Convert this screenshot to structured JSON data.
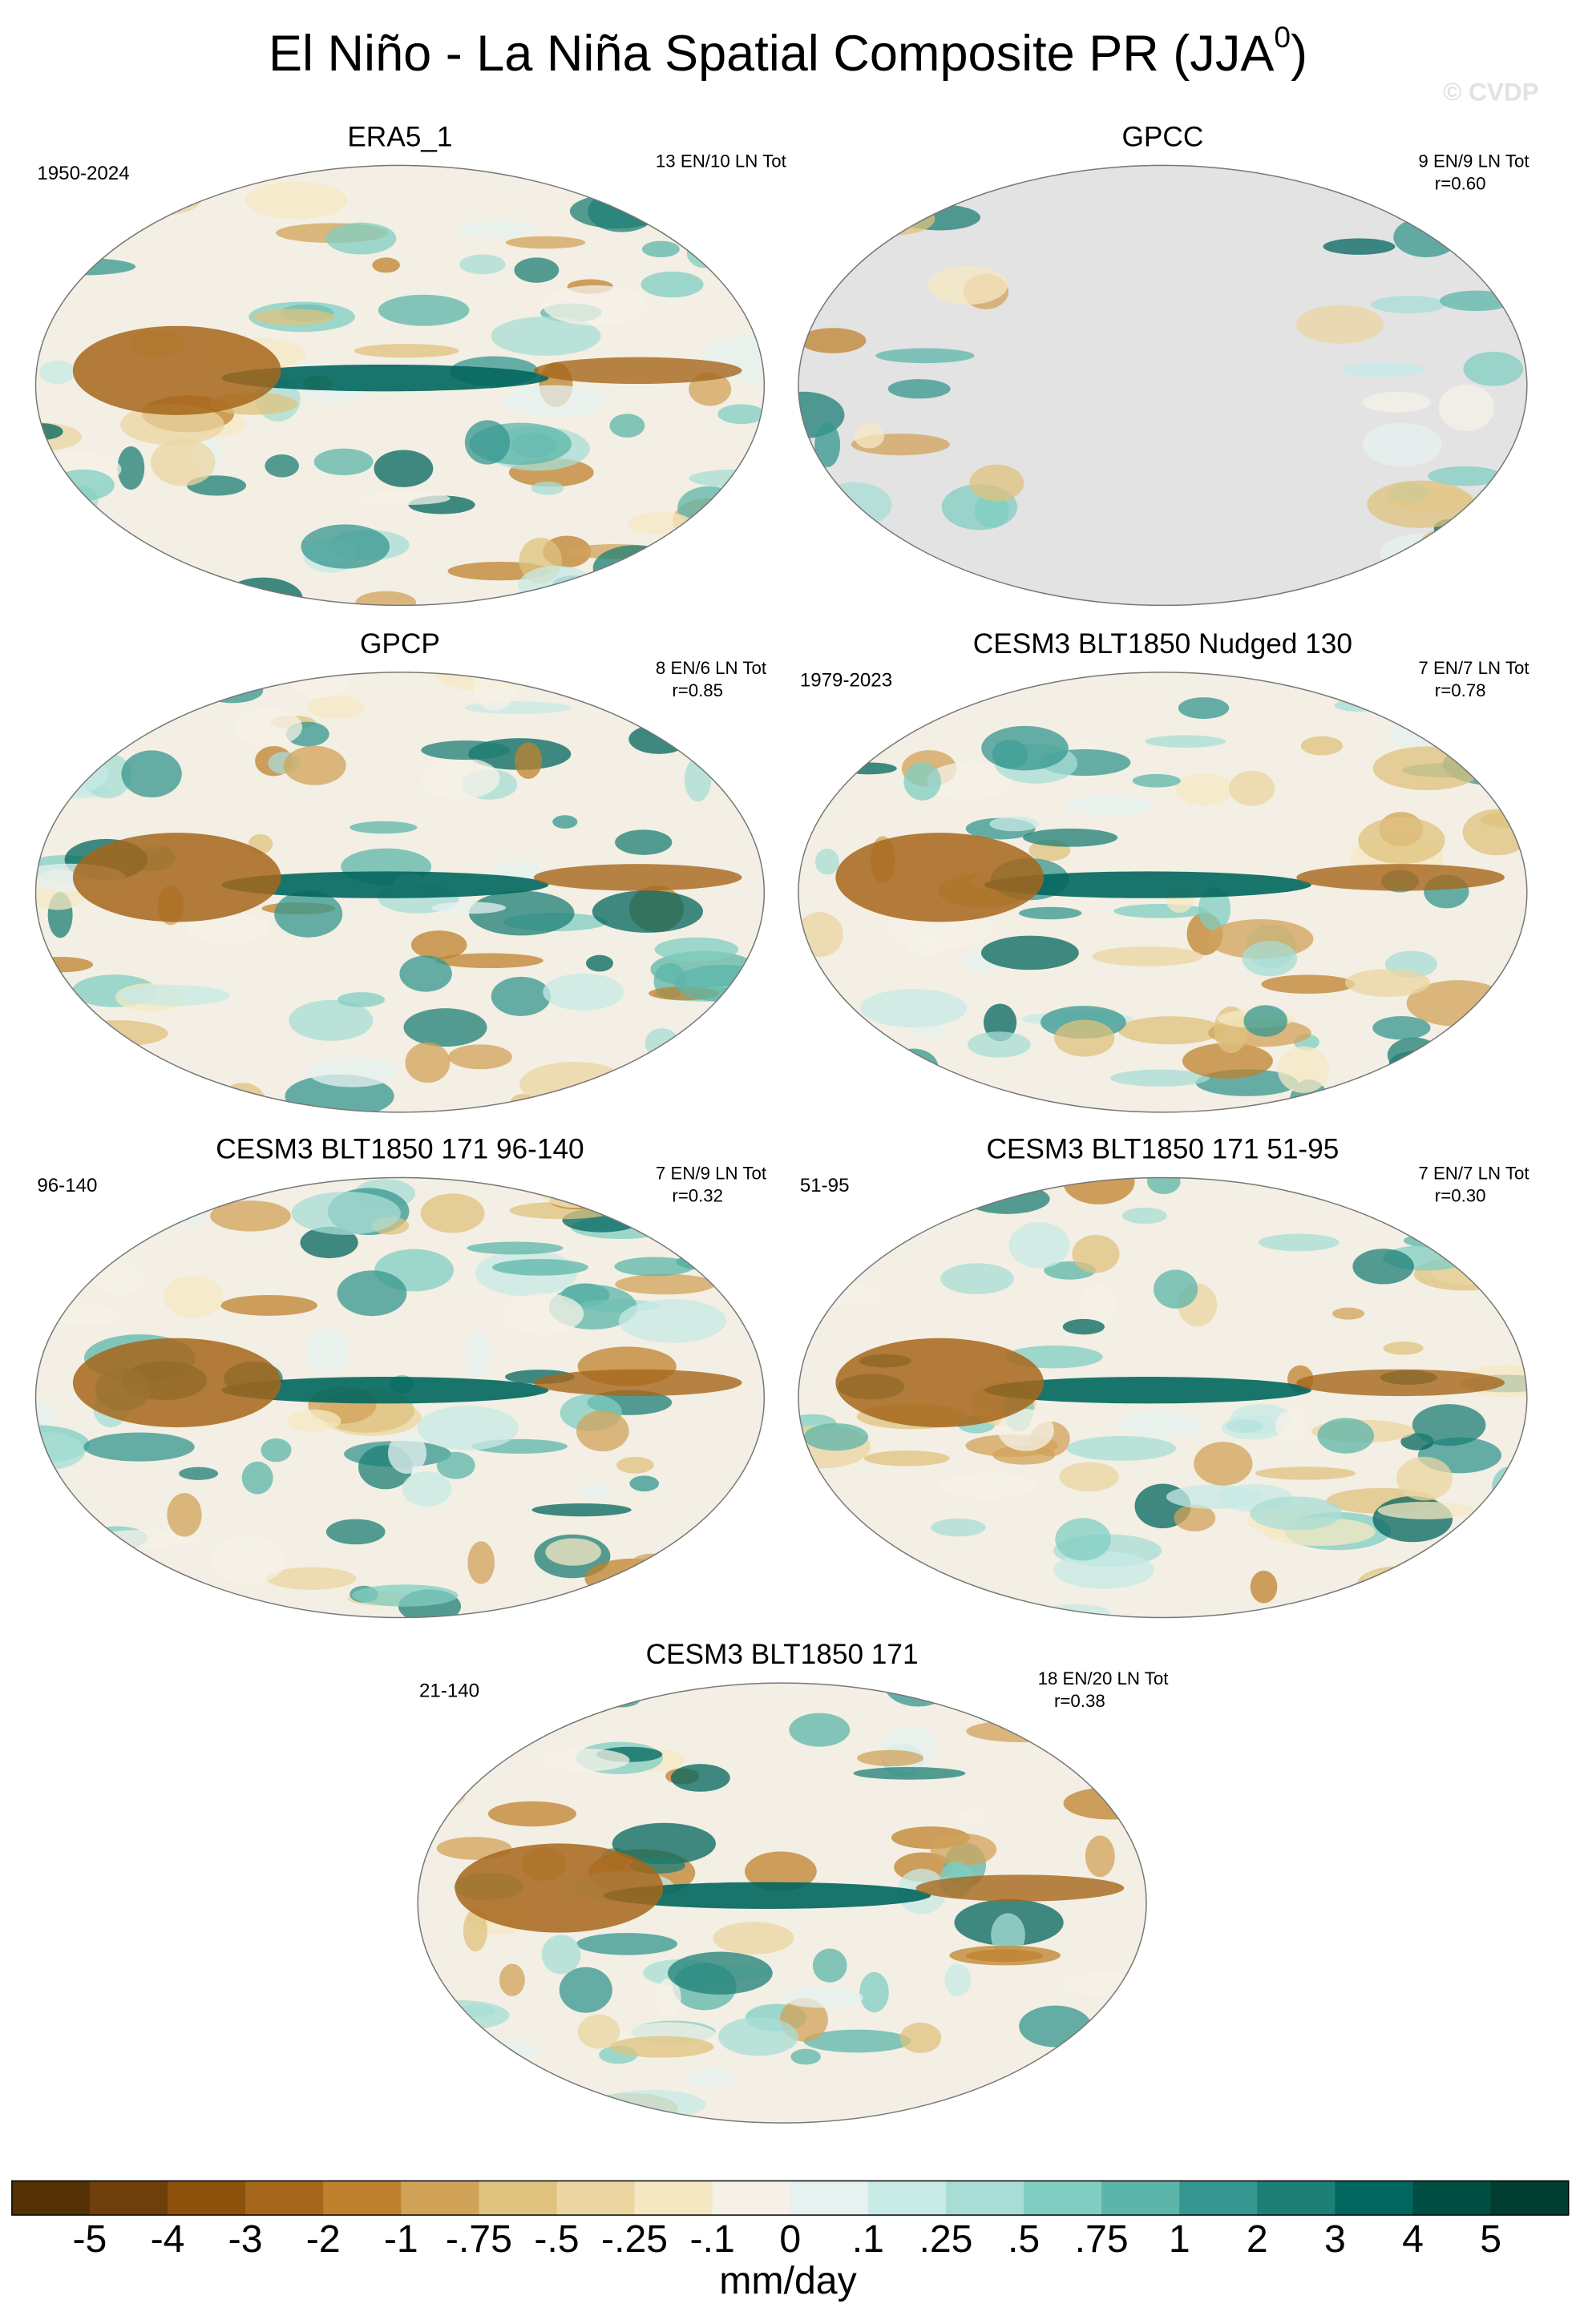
{
  "header": {
    "title": "El Niño - La Niña Spatial Composite PR (JJA",
    "title_sup": "0",
    "title_end": ")",
    "watermark": "© CVDP"
  },
  "panels": [
    {
      "title": "ERA5_1",
      "left": "1950-2024",
      "right": [
        "13 EN/10 LN Tot"
      ]
    },
    {
      "title": "GPCC",
      "left": "",
      "right": [
        "9 EN/9 LN Tot",
        "r=0.60"
      ]
    },
    {
      "title": "GPCP",
      "left": "",
      "right": [
        "8 EN/6 LN Tot",
        "r=0.85"
      ]
    },
    {
      "title": "CESM3 BLT1850 Nudged 130",
      "left": "1979-2023",
      "right": [
        "7 EN/7 LN Tot",
        "r=0.78"
      ]
    },
    {
      "title": "CESM3 BLT1850 171 96-140",
      "left": "96-140",
      "right": [
        "7 EN/9 LN Tot",
        "r=0.32"
      ]
    },
    {
      "title": "CESM3 BLT1850 171 51-95",
      "left": "51-95",
      "right": [
        "7 EN/7 LN Tot",
        "r=0.30"
      ]
    },
    {
      "title": "CESM3 BLT1850 171",
      "left": "21-140",
      "right": [
        "18 EN/20 LN Tot",
        "r=0.38"
      ]
    }
  ],
  "colorbar": {
    "colors": [
      "#543005",
      "#6f3f0b",
      "#8c510a",
      "#a6661b",
      "#bf812d",
      "#d1a359",
      "#dfc27d",
      "#ebd6a2",
      "#f6e8c3",
      "#f5f1e8",
      "#e6f2f0",
      "#c7eae5",
      "#a8ddd5",
      "#80cdc1",
      "#5cb5a9",
      "#35978f",
      "#1d7f76",
      "#01665e",
      "#004d42",
      "#003c30"
    ],
    "labels": [
      "-5",
      "-4",
      "-3",
      "-2",
      "-1",
      "-.75",
      "-.5",
      "-.25",
      "-.1",
      "0",
      ".1",
      ".25",
      ".5",
      ".75",
      "1",
      "2",
      "3",
      "4",
      "5"
    ],
    "unit": "mm/day"
  }
}
